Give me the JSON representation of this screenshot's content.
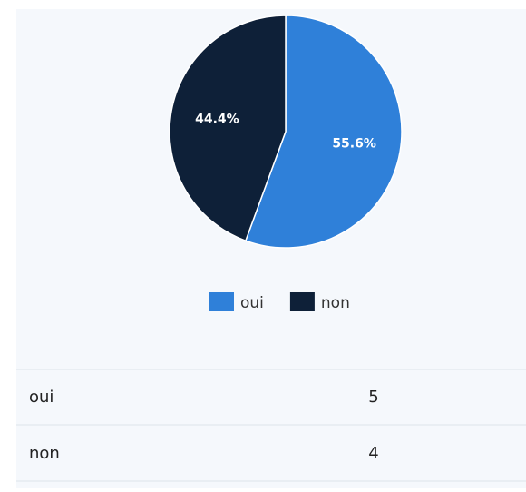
{
  "chart_data": {
    "type": "pie",
    "categories": [
      "oui",
      "non"
    ],
    "values": [
      55.6,
      44.4
    ],
    "value_labels": [
      "55.6%",
      "44.4%"
    ],
    "colors": [
      "#2f80d9",
      "#0e2038"
    ],
    "legend": "bottom"
  },
  "table": {
    "rows": [
      [
        "oui",
        "5"
      ],
      [
        "non",
        "4"
      ]
    ]
  }
}
